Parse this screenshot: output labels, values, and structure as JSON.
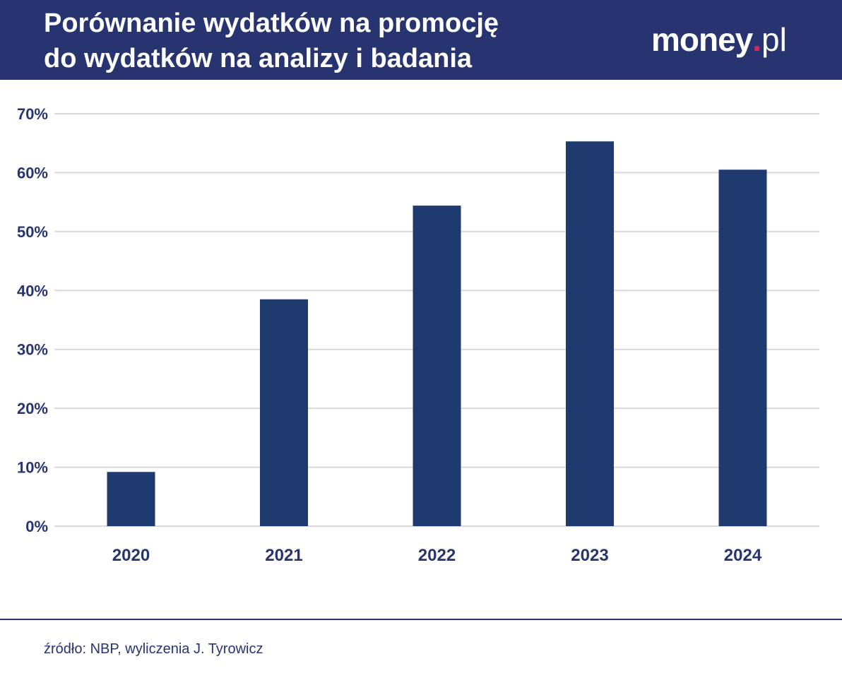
{
  "header": {
    "title_line1": "Porównanie wydatków na promocję",
    "title_line2": "do wydatków na analizy i badania",
    "logo_main": "money",
    "logo_dot": ".",
    "logo_tld": "pl"
  },
  "colors": {
    "header_bg": "#273470",
    "bar": "#1e3a6e",
    "grid": "#d9d9d9",
    "text": "#273470",
    "logo_accent": "#d9245c"
  },
  "chart_data": {
    "type": "bar",
    "categories": [
      "2020",
      "2021",
      "2022",
      "2023",
      "2024"
    ],
    "values": [
      9.2,
      38.5,
      54.4,
      65.3,
      60.5
    ],
    "yticks": [
      0,
      10,
      20,
      30,
      40,
      50,
      60,
      70
    ],
    "ytick_labels": [
      "0%",
      "10%",
      "20%",
      "30%",
      "40%",
      "50%",
      "60%",
      "70%"
    ],
    "ylim": [
      0,
      70
    ],
    "grid": true,
    "legend": "none",
    "title": "",
    "xlabel": "",
    "ylabel": ""
  },
  "footer": {
    "source": "źródło: NBP, wyliczenia J. Tyrowicz"
  }
}
